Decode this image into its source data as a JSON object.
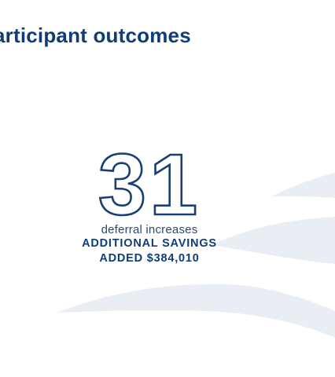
{
  "heading": "articipant outcomes",
  "stat": {
    "number": "31",
    "caption": "deferral increases",
    "line1": "ADDITIONAL SAVINGS",
    "line2": "ADDED $384,010"
  },
  "colors": {
    "navy": "#0f3d78",
    "outline": "#1a3f73",
    "caption": "#2e4a6b",
    "wave": "#e9eef4"
  }
}
